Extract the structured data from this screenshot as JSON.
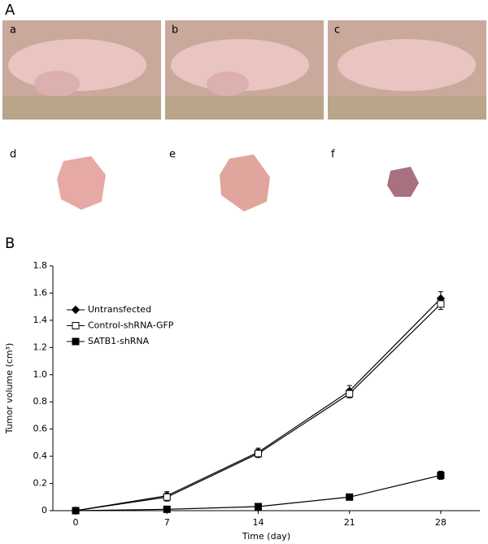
{
  "figure": {
    "panel_a": "A",
    "panel_b": "B",
    "photo_labels": [
      "a",
      "b",
      "c",
      "d",
      "e",
      "f"
    ]
  },
  "chart_data": {
    "type": "line",
    "x_label": "Time (day)",
    "y_label": "Tumor volume (cm³)",
    "x": [
      0,
      7,
      14,
      21,
      28
    ],
    "xlim": [
      -1.75,
      31
    ],
    "xticks": [
      0,
      7,
      14,
      21,
      28
    ],
    "ylim": [
      0,
      1.8
    ],
    "yticks": [
      0,
      0.2,
      0.4,
      0.6,
      0.8,
      {
        "value": 1,
        "label": "1.0"
      },
      1.2,
      1.4,
      1.6,
      1.8
    ],
    "grid": false,
    "legend": "upper-left",
    "series": [
      {
        "name": "Untransfected",
        "color": "#000000",
        "marker": "diamond",
        "values": [
          0,
          0.11,
          0.43,
          0.88,
          1.56
        ],
        "errors": [
          0.01,
          0.03,
          0.03,
          0.04,
          0.05
        ]
      },
      {
        "name": "Control-shRNA-GFP",
        "color": "#000000",
        "marker": "square-open",
        "values": [
          0,
          0.1,
          0.42,
          0.86,
          1.52
        ],
        "errors": [
          0.01,
          0.03,
          0.03,
          0.03,
          0.04
        ]
      },
      {
        "name": "SATB1-shRNA",
        "color": "#000000",
        "marker": "square",
        "values": [
          0,
          0.01,
          0.03,
          0.1,
          0.26
        ],
        "errors": [
          0,
          0.005,
          0.01,
          0.02,
          0.03
        ]
      }
    ]
  }
}
